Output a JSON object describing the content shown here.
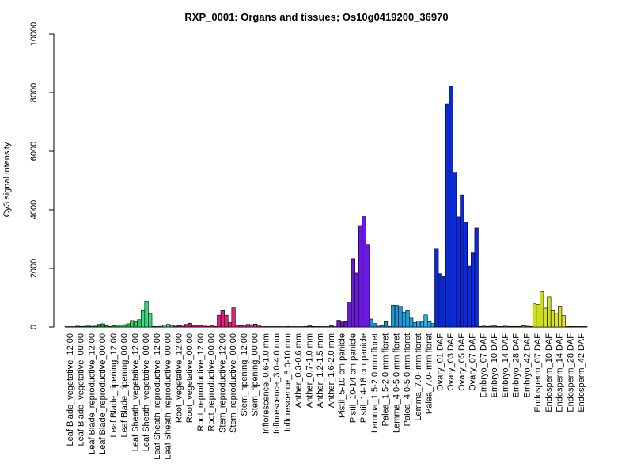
{
  "chart_data": {
    "type": "bar",
    "title": "RXP_0001: Organs and tissues; Os10g0419200_36970",
    "xlabel": "",
    "ylabel": "Cy3 signal intensity",
    "ylim": [
      0,
      10000
    ],
    "yticks": [
      0,
      2000,
      4000,
      6000,
      8000,
      10000
    ],
    "grid": false,
    "legend": "none",
    "groups": [
      {
        "label": "Leaf Blade_vegetative_12:00",
        "color": "#1a6b3a",
        "values": [
          5,
          5,
          5
        ]
      },
      {
        "label": "Leaf Blade_vegetative_00:00",
        "color": "#1a7a3a",
        "values": [
          30,
          20,
          25
        ]
      },
      {
        "label": "Leaf Blade_reproductive_12:00",
        "color": "#1a8a3a",
        "values": [
          35,
          25,
          30
        ]
      },
      {
        "label": "Leaf Blade_reproductive_00:00",
        "color": "#1a9a3a",
        "values": [
          90,
          110,
          50
        ]
      },
      {
        "label": "Leaf Blade_ripening_12:00",
        "color": "#20aa40",
        "values": [
          20,
          50,
          30
        ]
      },
      {
        "label": "Leaf Blade_ripening_00:00",
        "color": "#26b848",
        "values": [
          60,
          80,
          110
        ]
      },
      {
        "label": "Leaf Sheath_vegetative_12:00",
        "color": "#2ecc60",
        "values": [
          220,
          170,
          250
        ]
      },
      {
        "label": "Leaf Sheath_vegetative_00:00",
        "color": "#33dd80",
        "values": [
          560,
          880,
          470
        ]
      },
      {
        "label": "Leaf Sheath_reproductive_12:00",
        "color": "#40dd90",
        "values": [
          20,
          15,
          25
        ]
      },
      {
        "label": "Leaf Sheath_reproductive_00:00",
        "color": "#44e0a0",
        "values": [
          60,
          90,
          50
        ]
      },
      {
        "label": "Root_vegetative_12:00",
        "color": "#b01a70",
        "values": [
          30,
          50,
          30
        ]
      },
      {
        "label": "Root_vegetative_00:00",
        "color": "#c01a78",
        "values": [
          90,
          130,
          60
        ]
      },
      {
        "label": "Root_reproductive_12:00",
        "color": "#c81a7c",
        "values": [
          40,
          55,
          30
        ]
      },
      {
        "label": "Root_reproductive_00:00",
        "color": "#d01a80",
        "values": [
          25,
          40,
          20
        ]
      },
      {
        "label": "Stem_reproductive_12:00",
        "color": "#e0207a",
        "values": [
          400,
          560,
          400
        ]
      },
      {
        "label": "Stem_reproductive_00:00",
        "color": "#e82080",
        "values": [
          150,
          660,
          70
        ]
      },
      {
        "label": "Stem_ripening_12:00",
        "color": "#e02488",
        "values": [
          50,
          70,
          90
        ]
      },
      {
        "label": "Stem_ripening_00:00",
        "color": "#d82890",
        "values": [
          80,
          100,
          60
        ]
      },
      {
        "label": "Inflorescence_0.6-1.0 mm",
        "color": "#b02a80",
        "values": [
          10,
          15,
          10
        ]
      },
      {
        "label": "Inflorescence_3.0-4.0 mm",
        "color": "#a02a70",
        "values": [
          10,
          15,
          10
        ]
      },
      {
        "label": "Inflorescence_5.0-10 mm",
        "color": "#902a60",
        "values": [
          10,
          20,
          10
        ]
      },
      {
        "label": "Anther_0.3-0.6 mm",
        "color": "#802a50",
        "values": [
          10,
          10,
          10
        ]
      },
      {
        "label": "Anther_0.7-1.0 mm",
        "color": "#8a2a58",
        "values": [
          20,
          40,
          20
        ]
      },
      {
        "label": "Anther_1.2-1.5 mm",
        "color": "#942a60",
        "values": [
          10,
          15,
          10
        ]
      },
      {
        "label": "Anther_1.6-2.0 mm",
        "color": "#9e2a68",
        "values": [
          10,
          50,
          10
        ]
      },
      {
        "label": "Pistil_5-10 cm panicle",
        "color": "#6a1ac0",
        "values": [
          230,
          170,
          180
        ]
      },
      {
        "label": "Pistil_10-14 cm panicle",
        "color": "#6a1ad0",
        "values": [
          850,
          2330,
          1840
        ]
      },
      {
        "label": "Pistil_14-18 cm panicle",
        "color": "#6a1ae0",
        "values": [
          3460,
          3770,
          2820
        ]
      },
      {
        "label": "Lemma_1.5-2.0 mm floret",
        "color": "#1a8ac8",
        "values": [
          270,
          120,
          30
        ]
      },
      {
        "label": "Palea_1.5-2.0 mm floret",
        "color": "#1a92d0",
        "values": [
          50,
          180,
          10
        ]
      },
      {
        "label": "Lemma_4.0-5.0 mm floret",
        "color": "#1a9ad8",
        "values": [
          750,
          740,
          720
        ]
      },
      {
        "label": "Palea_4.0-5.0 mm floret",
        "color": "#1aa2e0",
        "values": [
          510,
          560,
          300
        ]
      },
      {
        "label": "Lemma_7.0- mm floret",
        "color": "#1aaae8",
        "values": [
          150,
          200,
          170
        ]
      },
      {
        "label": "Palea_7.0- mm floret",
        "color": "#1ab2f0",
        "values": [
          410,
          180,
          120
        ]
      },
      {
        "label": "Ovary_01 DAF",
        "color": "#0a2acc",
        "values": [
          2680,
          1820,
          1720
        ]
      },
      {
        "label": "Ovary_03 DAF",
        "color": "#0a2ad4",
        "values": [
          7620,
          8220,
          5280
        ]
      },
      {
        "label": "Ovary_05 DAF",
        "color": "#0a2adc",
        "values": [
          3760,
          4510,
          3570
        ]
      },
      {
        "label": "Ovary_07 DAF",
        "color": "#0a2ae4",
        "values": [
          2080,
          2550,
          3380
        ]
      },
      {
        "label": "Embryo_07 DAF",
        "color": "#556b2f",
        "values": [
          20,
          30,
          20
        ]
      },
      {
        "label": "Embryo_10 DAF",
        "color": "#5a702f",
        "values": [
          30,
          40,
          20
        ]
      },
      {
        "label": "Embryo_14 DAF",
        "color": "#60762f",
        "values": [
          20,
          30,
          20
        ]
      },
      {
        "label": "Embryo_28 DAF",
        "color": "#667c2f",
        "values": [
          20,
          20,
          20
        ]
      },
      {
        "label": "Embryo_42 DAF",
        "color": "#6c822f",
        "values": [
          50,
          30,
          20
        ]
      },
      {
        "label": "Endosperm_07 DAF",
        "color": "#ccdd1a",
        "values": [
          790,
          770,
          1200
        ]
      },
      {
        "label": "Endosperm_10 DAF",
        "color": "#d4e020",
        "values": [
          650,
          1030,
          560
        ]
      },
      {
        "label": "Endosperm_14 DAF",
        "color": "#dce428",
        "values": [
          460,
          690,
          390
        ]
      },
      {
        "label": "Endosperm_28 DAF",
        "color": "#e0e830",
        "values": [
          15,
          20,
          15
        ]
      },
      {
        "label": "Endosperm_42 DAF",
        "color": "#e4ec38",
        "values": [
          15,
          15,
          15
        ]
      }
    ]
  }
}
